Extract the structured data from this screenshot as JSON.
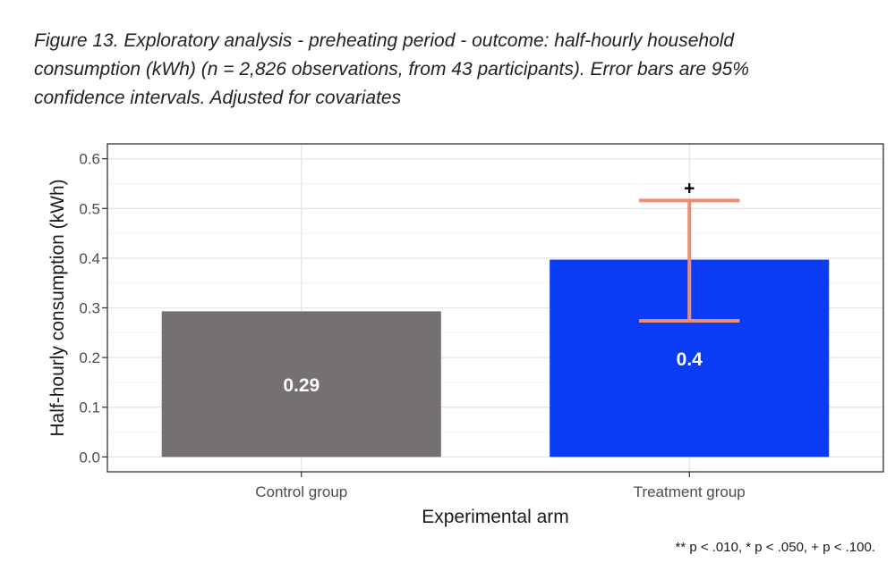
{
  "caption": "Figure 13. Exploratory analysis - preheating period - outcome: half-hourly household consumption (kWh) (n = 2,826 observations, from 43 participants). Error bars are 95% confidence intervals. Adjusted for covariates",
  "footnote": "** p < .010, * p < .050, + p < .100.",
  "chart_data": {
    "type": "bar",
    "title": "",
    "xlabel": "Experimental arm",
    "ylabel": "Half-hourly consumption (kWh)",
    "categories": [
      "Control group",
      "Treatment group"
    ],
    "values": [
      0.293,
      0.397
    ],
    "value_labels": [
      "0.29",
      "0.4"
    ],
    "bar_colors": [
      "#757170",
      "#0a3cf5"
    ],
    "error_bars": [
      null,
      {
        "low": 0.274,
        "high": 0.516
      }
    ],
    "error_bar_color": "#ec8f74",
    "significance": [
      "",
      "+"
    ],
    "ylim": [
      -0.03,
      0.63
    ],
    "yticks": [
      0.0,
      0.1,
      0.2,
      0.3,
      0.4,
      0.5,
      0.6
    ],
    "ytick_labels": [
      "0.0",
      "0.1",
      "0.2",
      "0.3",
      "0.4",
      "0.5",
      "0.6"
    ],
    "grid": true,
    "legend": "none"
  }
}
